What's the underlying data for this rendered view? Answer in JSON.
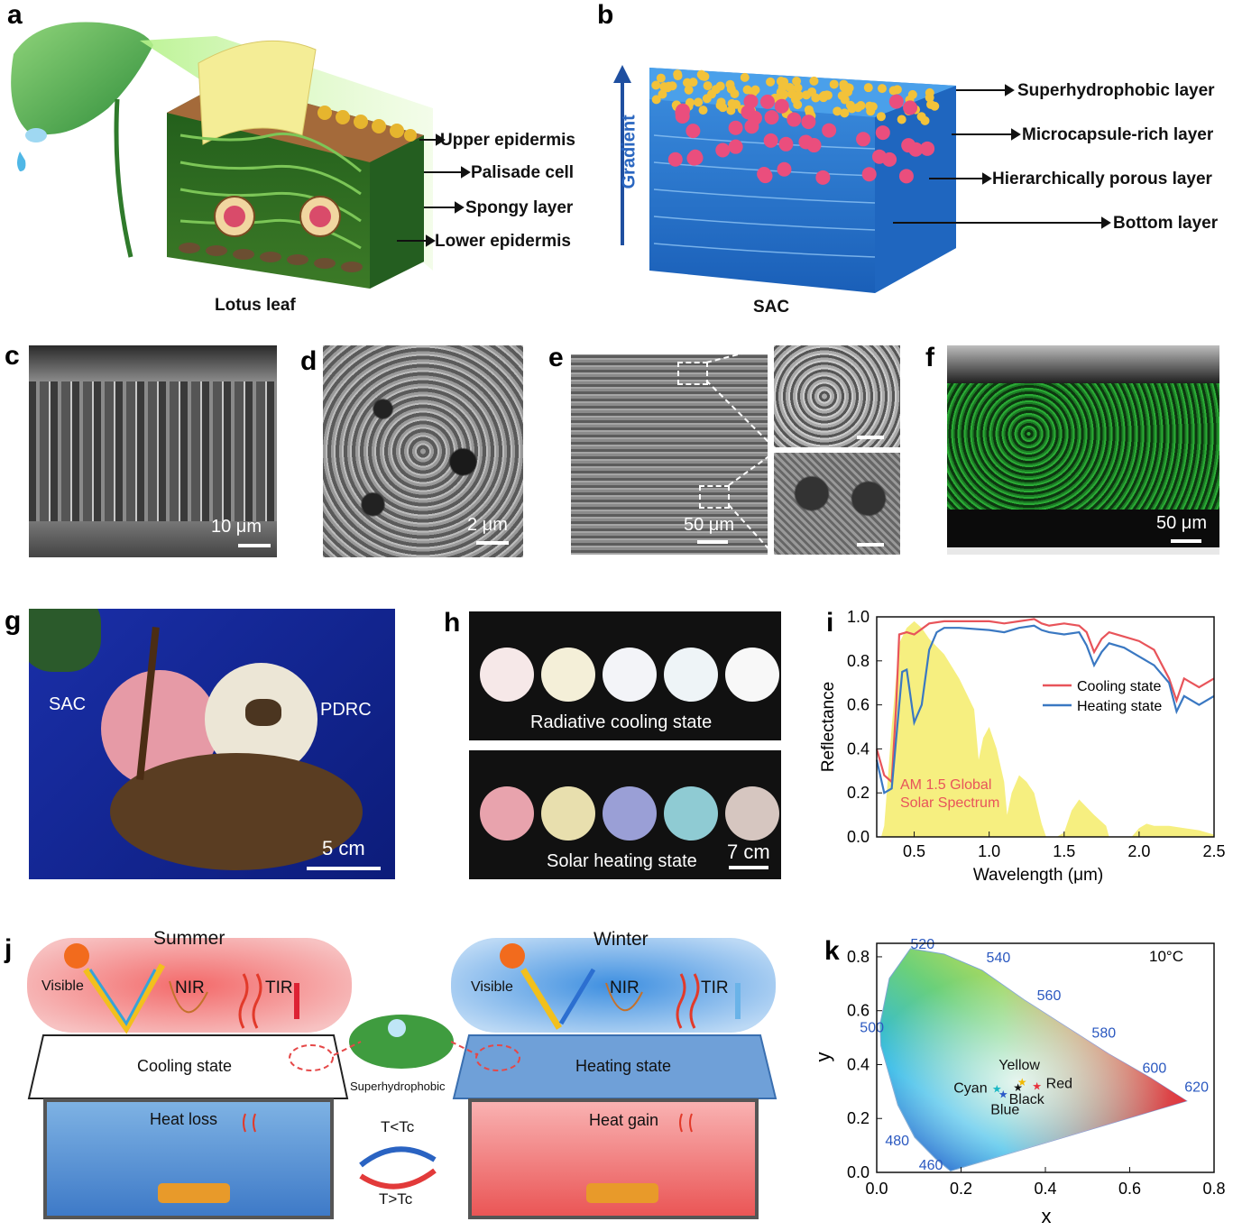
{
  "panels": {
    "a": {
      "label": "a",
      "caption": "Lotus leaf",
      "layers": [
        "Upper epidermis",
        "Palisade cell",
        "Spongy layer",
        "Lower epidermis"
      ]
    },
    "b": {
      "label": "b",
      "caption": "SAC",
      "axis": "Gradient",
      "layers": [
        "Superhydrophobic layer",
        "Microcapsule-rich layer",
        "Hierarchically porous layer",
        "Bottom layer"
      ]
    },
    "c": {
      "label": "c",
      "scale": "10 μm"
    },
    "d": {
      "label": "d",
      "scale": "2 μm"
    },
    "e": {
      "label": "e",
      "scale": "50 μm"
    },
    "f": {
      "label": "f",
      "scale": "50 μm"
    },
    "g": {
      "label": "g",
      "left_tag": "SAC",
      "right_tag": "PDRC",
      "scale": "5 cm"
    },
    "h": {
      "label": "h",
      "top_caption": "Radiative cooling state",
      "bottom_caption": "Solar heating state",
      "scale": "7 cm",
      "top_colors": [
        "#f6e8e8",
        "#f4efd8",
        "#f3f4f8",
        "#eef4f7",
        "#f8f8f8"
      ],
      "bottom_colors": [
        "#e8a3ad",
        "#e8dfae",
        "#9a9fd6",
        "#8fcbd3",
        "#d6c6c0"
      ]
    },
    "i": {
      "label": "i",
      "annotation": [
        "AM 1.5 Global",
        "Solar Spectrum"
      ]
    },
    "j": {
      "label": "j",
      "summer": "Summer",
      "winter": "Winter",
      "visible": "Visible",
      "nir": "NIR",
      "tir": "TIR",
      "cooling_state": "Cooling state",
      "heating_state": "Heating state",
      "heat_loss": "Heat loss",
      "heat_gain": "Heat gain",
      "superhydrophobic": "Superhydrophobic",
      "t_lt": "T<Tc",
      "t_gt": "T>Tc"
    },
    "k": {
      "label": "k",
      "temp": "10°C"
    }
  },
  "chart_data": [
    {
      "type": "line",
      "panel": "i",
      "xlabel": "Wavelength (μm)",
      "ylabel": "Reflectance",
      "xlim": [
        0.25,
        2.5
      ],
      "ylim": [
        0.0,
        1.0
      ],
      "xticks": [
        0.5,
        1.0,
        1.5,
        2.0,
        2.5
      ],
      "yticks": [
        0.0,
        0.2,
        0.4,
        0.6,
        0.8,
        1.0
      ],
      "legend_position": "right",
      "series": [
        {
          "name": "Cooling state",
          "color": "#e8545a",
          "x": [
            0.25,
            0.3,
            0.35,
            0.38,
            0.4,
            0.45,
            0.5,
            0.6,
            0.7,
            0.8,
            1.0,
            1.1,
            1.2,
            1.3,
            1.35,
            1.4,
            1.5,
            1.6,
            1.65,
            1.7,
            1.75,
            1.8,
            1.9,
            2.0,
            2.1,
            2.2,
            2.25,
            2.3,
            2.4,
            2.5
          ],
          "y": [
            0.4,
            0.28,
            0.25,
            0.6,
            0.92,
            0.93,
            0.92,
            0.97,
            0.98,
            0.98,
            0.98,
            0.97,
            0.98,
            0.99,
            0.97,
            0.96,
            0.97,
            0.96,
            0.93,
            0.84,
            0.9,
            0.93,
            0.91,
            0.89,
            0.85,
            0.72,
            0.62,
            0.72,
            0.68,
            0.72
          ]
        },
        {
          "name": "Heating state",
          "color": "#3a78c2",
          "x": [
            0.25,
            0.3,
            0.35,
            0.4,
            0.42,
            0.45,
            0.5,
            0.55,
            0.6,
            0.65,
            0.7,
            0.8,
            1.0,
            1.1,
            1.2,
            1.3,
            1.35,
            1.4,
            1.5,
            1.6,
            1.65,
            1.7,
            1.75,
            1.8,
            1.9,
            2.0,
            2.1,
            2.2,
            2.25,
            2.3,
            2.4,
            2.5
          ],
          "y": [
            0.35,
            0.2,
            0.22,
            0.6,
            0.75,
            0.76,
            0.52,
            0.6,
            0.85,
            0.93,
            0.95,
            0.95,
            0.94,
            0.93,
            0.95,
            0.96,
            0.94,
            0.93,
            0.92,
            0.93,
            0.87,
            0.78,
            0.84,
            0.88,
            0.86,
            0.82,
            0.78,
            0.7,
            0.57,
            0.64,
            0.6,
            0.64
          ]
        },
        {
          "name": "",
          "color": "#f5ec6a",
          "style": "filled-area",
          "x": [
            0.28,
            0.3,
            0.35,
            0.4,
            0.45,
            0.5,
            0.55,
            0.6,
            0.7,
            0.8,
            0.9,
            0.93,
            0.96,
            1.0,
            1.05,
            1.1,
            1.12,
            1.15,
            1.2,
            1.25,
            1.3,
            1.35,
            1.38,
            1.45,
            1.5,
            1.55,
            1.6,
            1.7,
            1.78,
            1.8,
            1.95,
            2.0,
            2.05,
            2.1,
            2.2,
            2.3,
            2.4,
            2.5
          ],
          "y": [
            0.0,
            0.05,
            0.5,
            0.88,
            0.95,
            0.98,
            0.95,
            0.9,
            0.83,
            0.72,
            0.58,
            0.35,
            0.45,
            0.5,
            0.4,
            0.25,
            0.1,
            0.2,
            0.28,
            0.25,
            0.2,
            0.06,
            0.0,
            0.0,
            0.02,
            0.12,
            0.17,
            0.1,
            0.05,
            0.0,
            0.0,
            0.04,
            0.06,
            0.05,
            0.05,
            0.04,
            0.03,
            0.01
          ]
        }
      ]
    },
    {
      "type": "scatter",
      "panel": "k",
      "xlabel": "x",
      "ylabel": "y",
      "xlim": [
        0.0,
        0.8
      ],
      "ylim": [
        0.0,
        0.85
      ],
      "xticks": [
        0.0,
        0.2,
        0.4,
        0.6,
        0.8
      ],
      "yticks": [
        0.0,
        0.2,
        0.4,
        0.6,
        0.8
      ],
      "locus_labels": [
        {
          "text": "520",
          "x": 0.08,
          "y": 0.83
        },
        {
          "text": "540",
          "x": 0.26,
          "y": 0.78
        },
        {
          "text": "560",
          "x": 0.38,
          "y": 0.64
        },
        {
          "text": "580",
          "x": 0.51,
          "y": 0.5
        },
        {
          "text": "600",
          "x": 0.63,
          "y": 0.37
        },
        {
          "text": "620",
          "x": 0.73,
          "y": 0.3
        },
        {
          "text": "500",
          "x": -0.04,
          "y": 0.52
        },
        {
          "text": "480",
          "x": 0.02,
          "y": 0.1
        },
        {
          "text": "460",
          "x": 0.1,
          "y": 0.01
        }
      ],
      "series": [
        {
          "name": "Yellow",
          "color": "#f0b800",
          "values": [
            {
              "x": 0.345,
              "y": 0.335
            }
          ]
        },
        {
          "name": "Red",
          "color": "#e8303a",
          "values": [
            {
              "x": 0.38,
              "y": 0.32
            }
          ]
        },
        {
          "name": "Black",
          "color": "#111111",
          "values": [
            {
              "x": 0.335,
              "y": 0.315
            }
          ]
        },
        {
          "name": "Cyan",
          "color": "#19b7c4",
          "values": [
            {
              "x": 0.285,
              "y": 0.31
            }
          ]
        },
        {
          "name": "Blue",
          "color": "#2a58c8",
          "values": [
            {
              "x": 0.3,
              "y": 0.29
            }
          ]
        }
      ]
    }
  ]
}
